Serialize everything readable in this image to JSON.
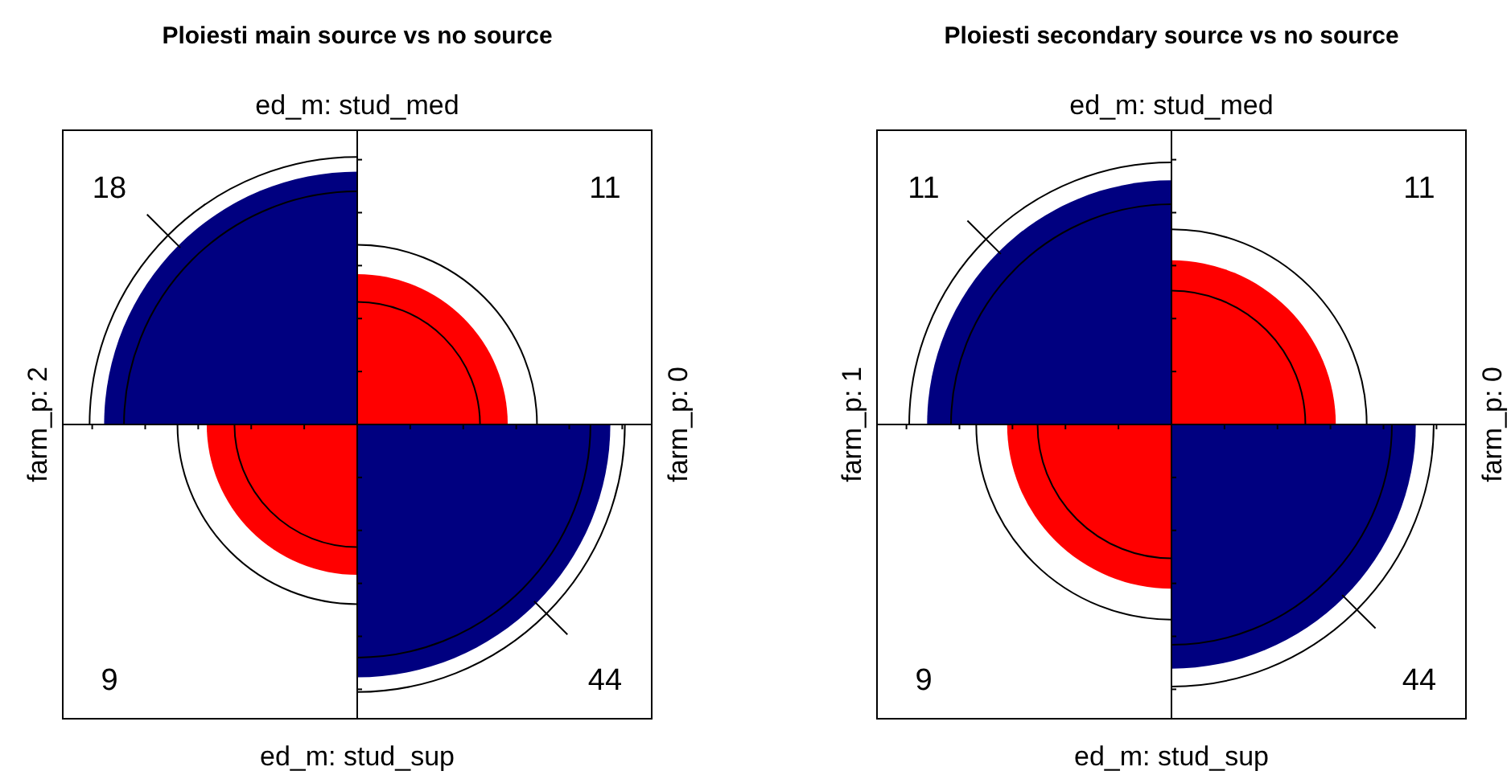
{
  "chart_data": [
    {
      "type": "other",
      "title": "Ploiesti main source vs no source",
      "x2label": "ed_m: stud_med",
      "xlabel": "ed_m: stud_sup",
      "ylabel": "farm_p: 2",
      "y2label": "farm_p: 0",
      "values": [
        18,
        11,
        9,
        44
      ],
      "colors": [
        "#000080",
        "#ff0000",
        "#ff0000",
        "#000080"
      ],
      "data_labels": true
    },
    {
      "type": "other",
      "title": "Ploiesti secondary source vs no source",
      "x2label": "ed_m: stud_med",
      "xlabel": "ed_m: stud_sup",
      "ylabel": "farm_p: 1",
      "y2label": "farm_p: 0",
      "values": [
        11,
        11,
        9,
        44
      ],
      "colors": [
        "#000080",
        "#ff0000",
        "#ff0000",
        "#000080"
      ],
      "data_labels": true
    }
  ]
}
